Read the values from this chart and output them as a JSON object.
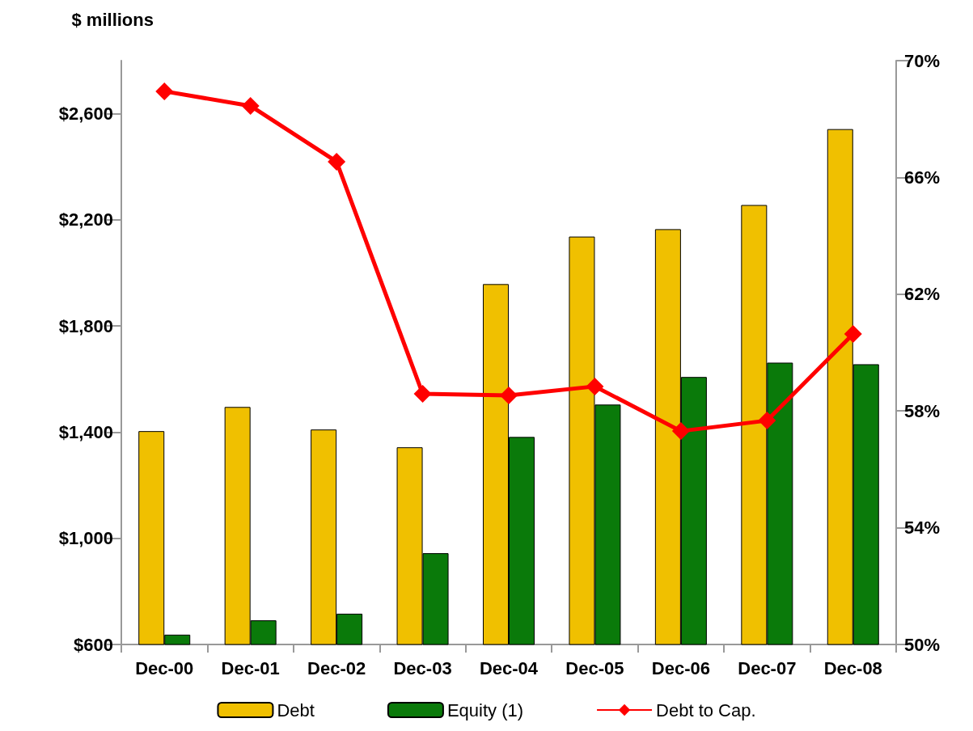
{
  "chart_data": {
    "type": "bar",
    "ylabel": "$ millions",
    "categories": [
      "Dec-00",
      "Dec-01",
      "Dec-02",
      "Dec-03",
      "Dec-04",
      "Dec-05",
      "Dec-06",
      "Dec-07",
      "Dec-08"
    ],
    "series": [
      {
        "name": "Debt",
        "color": "#f0c000",
        "values": [
          1404,
          1495,
          1410,
          1343,
          1958,
          2137,
          2165,
          2256,
          2542
        ]
      },
      {
        "name": "Equity (1)",
        "color": "#0a7a0a",
        "values": [
          637,
          691,
          716,
          944,
          1382,
          1504,
          1608,
          1662,
          1656
        ]
      },
      {
        "name": "Debt to Cap.",
        "type": "line",
        "axis": "y2",
        "color": "#ff0000",
        "marker": "diamond",
        "values": [
          68.95,
          68.45,
          66.54,
          58.59,
          58.53,
          58.84,
          57.31,
          57.67,
          60.64
        ]
      }
    ],
    "ylim": [
      600,
      2800
    ],
    "yticks": [
      {
        "value": 600,
        "label": "$600"
      },
      {
        "value": 1000,
        "label": "$1,000"
      },
      {
        "value": 1400,
        "label": "$1,400"
      },
      {
        "value": 1800,
        "label": "$1,800"
      },
      {
        "value": 2200,
        "label": "$2,200"
      },
      {
        "value": 2600,
        "label": "$2,600"
      }
    ],
    "y2lim": [
      50,
      70
    ],
    "y2ticks": [
      {
        "value": 50,
        "label": "50%"
      },
      {
        "value": 54,
        "label": "54%"
      },
      {
        "value": 58,
        "label": "58%"
      },
      {
        "value": 62,
        "label": "62%"
      },
      {
        "value": 66,
        "label": "66%"
      },
      {
        "value": 70,
        "label": "70%"
      }
    ],
    "grid": false,
    "legend": "bottom"
  }
}
